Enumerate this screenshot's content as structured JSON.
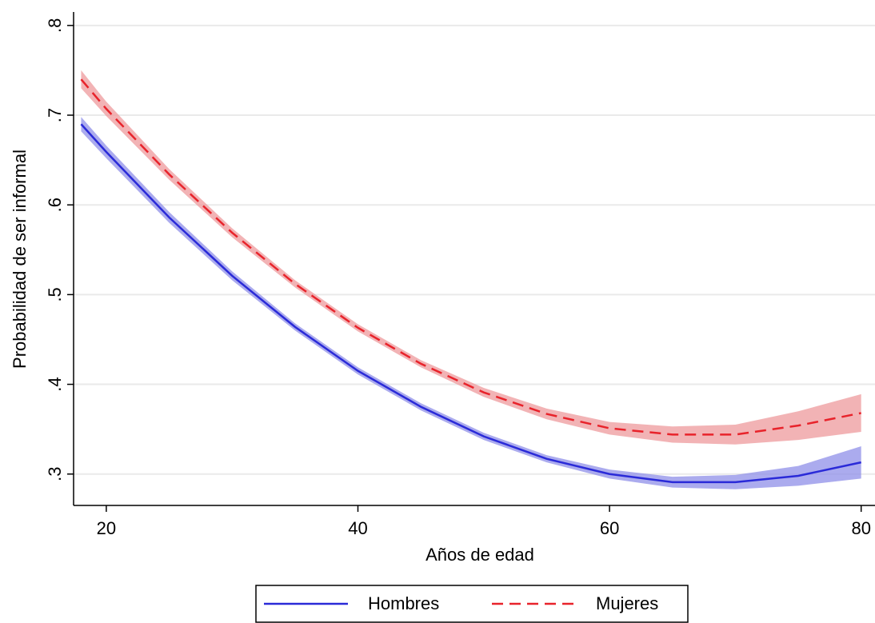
{
  "chart_data": {
    "type": "line",
    "x_label": "Años de edad",
    "y_label": "Probabilidad de ser informal",
    "x": [
      18,
      20,
      25,
      30,
      35,
      40,
      45,
      50,
      55,
      60,
      65,
      70,
      75,
      80
    ],
    "series": [
      {
        "name": "Hombres",
        "color": "#2a2ad8",
        "band_color": "#8f8fe8",
        "dash": "solid",
        "values": [
          0.69,
          0.659,
          0.586,
          0.521,
          0.464,
          0.415,
          0.375,
          0.342,
          0.317,
          0.3,
          0.291,
          0.291,
          0.298,
          0.313
        ],
        "lower": [
          0.682,
          0.652,
          0.58,
          0.516,
          0.46,
          0.411,
          0.371,
          0.338,
          0.313,
          0.295,
          0.285,
          0.283,
          0.287,
          0.295
        ],
        "upper": [
          0.698,
          0.666,
          0.592,
          0.526,
          0.468,
          0.419,
          0.379,
          0.346,
          0.321,
          0.305,
          0.297,
          0.299,
          0.309,
          0.331
        ]
      },
      {
        "name": "Mujeres",
        "color": "#e8232b",
        "band_color": "#ee9a9c",
        "dash": "dashed",
        "values": [
          0.74,
          0.707,
          0.634,
          0.569,
          0.512,
          0.463,
          0.423,
          0.391,
          0.367,
          0.351,
          0.344,
          0.344,
          0.354,
          0.368
        ],
        "lower": [
          0.73,
          0.699,
          0.628,
          0.564,
          0.508,
          0.459,
          0.419,
          0.386,
          0.361,
          0.344,
          0.335,
          0.333,
          0.338,
          0.347
        ],
        "upper": [
          0.75,
          0.715,
          0.64,
          0.574,
          0.516,
          0.467,
          0.427,
          0.396,
          0.373,
          0.358,
          0.353,
          0.355,
          0.37,
          0.389
        ]
      }
    ],
    "xlim": [
      17.4,
      81.1
    ],
    "xticks": [
      20,
      40,
      60,
      80
    ],
    "ylim": [
      0.265,
      0.815
    ],
    "yticks": [
      {
        "value": 0.3,
        "label": ".3"
      },
      {
        "value": 0.4,
        "label": ".4"
      },
      {
        "value": 0.5,
        "label": ".5"
      },
      {
        "value": 0.6,
        "label": ".6"
      },
      {
        "value": 0.7,
        "label": ".7"
      },
      {
        "value": 0.8,
        "label": ".8"
      }
    ],
    "grid": true,
    "legend": "bottom"
  }
}
